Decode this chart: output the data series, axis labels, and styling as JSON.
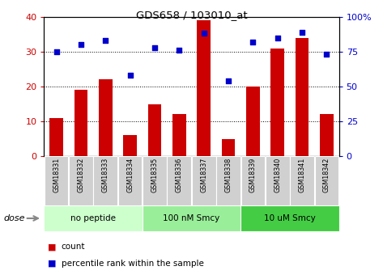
{
  "title": "GDS658 / 103010_at",
  "samples": [
    "GSM18331",
    "GSM18332",
    "GSM18333",
    "GSM18334",
    "GSM18335",
    "GSM18336",
    "GSM18337",
    "GSM18338",
    "GSM18339",
    "GSM18340",
    "GSM18341",
    "GSM18342"
  ],
  "bar_values": [
    11,
    19,
    22,
    6,
    15,
    12,
    39,
    5,
    20,
    31,
    34,
    12
  ],
  "dot_values_pct": [
    75,
    80,
    83,
    58,
    78,
    76,
    88,
    54,
    82,
    85,
    89,
    73
  ],
  "bar_color": "#cc0000",
  "dot_color": "#0000cc",
  "ylim_left": [
    0,
    40
  ],
  "ylim_right": [
    0,
    100
  ],
  "yticks_left": [
    0,
    10,
    20,
    30,
    40
  ],
  "yticks_right": [
    0,
    25,
    50,
    75,
    100
  ],
  "ytick_labels_right": [
    "0",
    "25",
    "50",
    "75",
    "100%"
  ],
  "groups": [
    {
      "label": "no peptide",
      "start": 0,
      "end": 3,
      "color": "#ccffcc"
    },
    {
      "label": "100 nM Smcy",
      "start": 4,
      "end": 7,
      "color": "#99ee99"
    },
    {
      "label": "10 uM Smcy",
      "start": 8,
      "end": 11,
      "color": "#44cc44"
    }
  ],
  "dose_label": "dose",
  "legend_count": "count",
  "legend_pct": "percentile rank within the sample",
  "xtick_bg": "#d0d0d0",
  "plot_bg": "#ffffff",
  "grid_lines": [
    10,
    20,
    30
  ]
}
